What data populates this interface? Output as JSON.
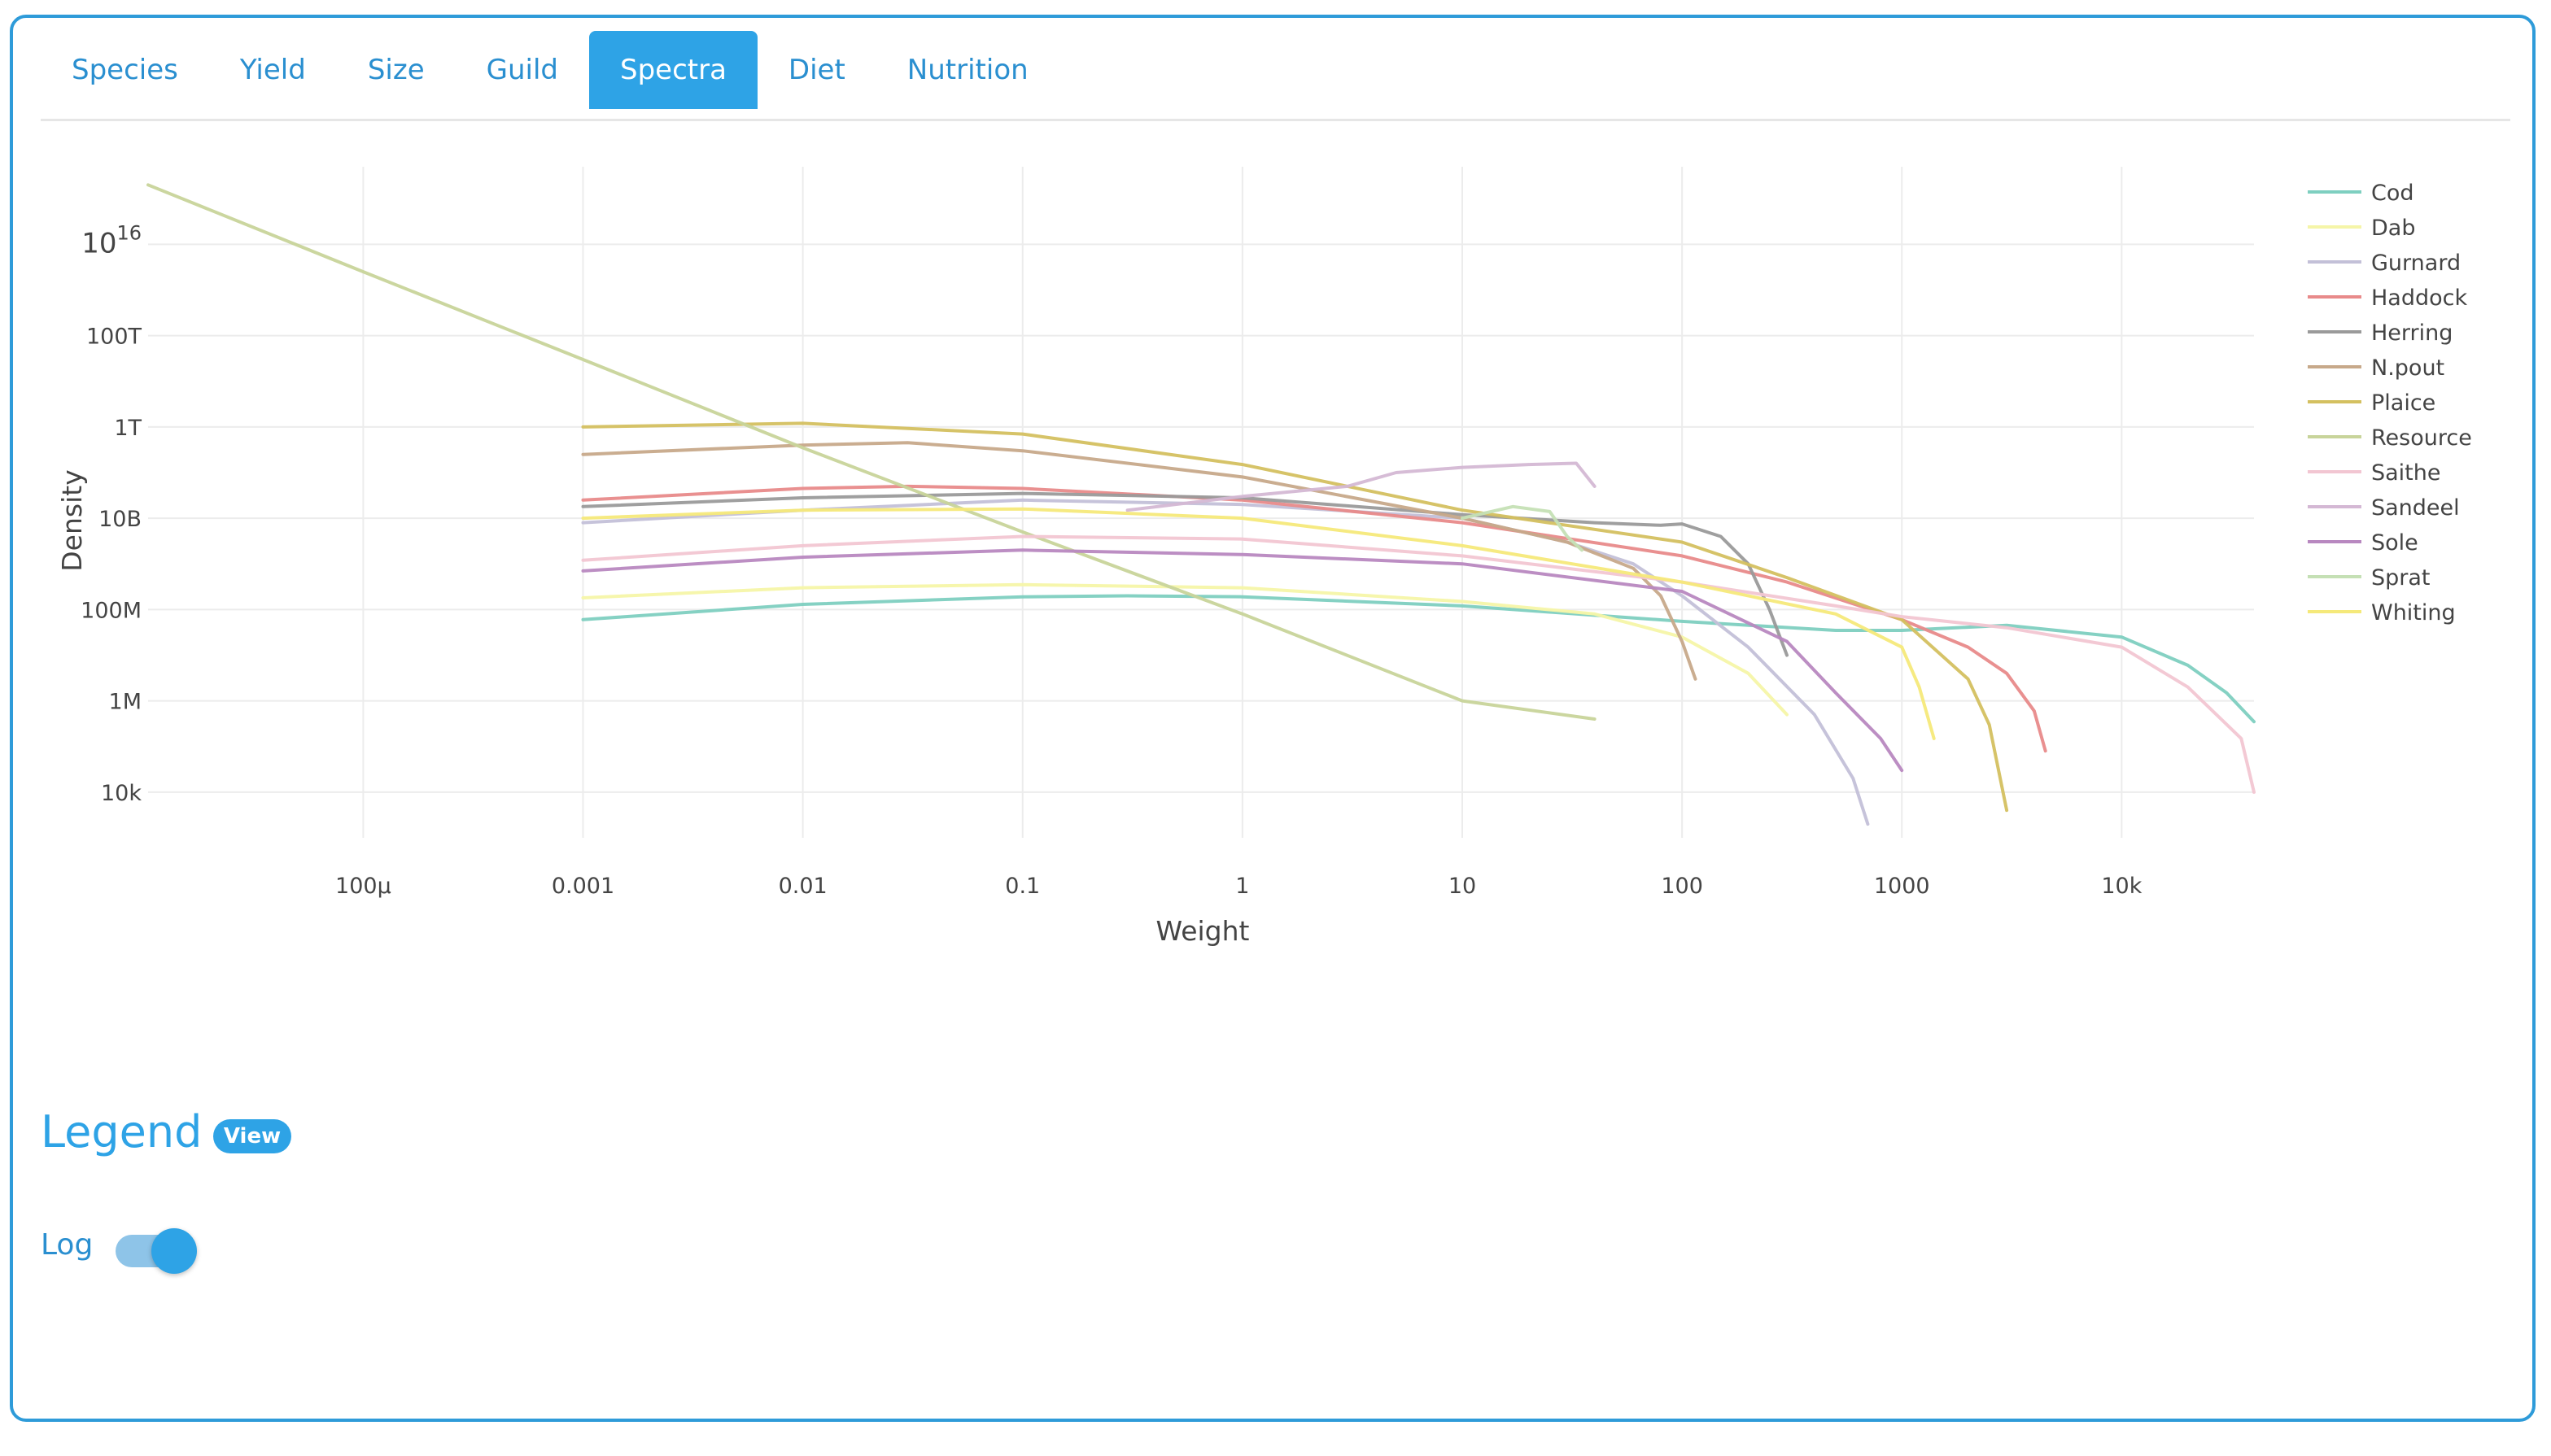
{
  "tabs": [
    {
      "label": "Species",
      "active": false
    },
    {
      "label": "Yield",
      "active": false
    },
    {
      "label": "Size",
      "active": false
    },
    {
      "label": "Guild",
      "active": false
    },
    {
      "label": "Spectra",
      "active": true
    },
    {
      "label": "Diet",
      "active": false
    },
    {
      "label": "Nutrition",
      "active": false
    }
  ],
  "legend_section": {
    "heading": "Legend",
    "view_label": "View"
  },
  "log_toggle": {
    "label": "Log",
    "on": true
  },
  "chart_data": {
    "type": "line",
    "xlabel": "Weight",
    "ylabel": "Density",
    "xscale": "log",
    "yscale": "log",
    "xlim": [
      1.05e-05,
      40000
    ],
    "ylim": [
      1000,
      5e+17
    ],
    "x_ticks": [
      {
        "value": 0.0001,
        "label": "100μ"
      },
      {
        "value": 0.001,
        "label": "0.001"
      },
      {
        "value": 0.01,
        "label": "0.01"
      },
      {
        "value": 0.1,
        "label": "0.1"
      },
      {
        "value": 1,
        "label": "1"
      },
      {
        "value": 10,
        "label": "10"
      },
      {
        "value": 100,
        "label": "100"
      },
      {
        "value": 1000,
        "label": "1000"
      },
      {
        "value": 10000,
        "label": "10k"
      }
    ],
    "y_ticks": [
      {
        "value": 10000,
        "label": "10k"
      },
      {
        "value": 1000000,
        "label": "1M"
      },
      {
        "value": 100000000,
        "label": "100M"
      },
      {
        "value": 10000000000,
        "label": "10B"
      },
      {
        "value": 1000000000000,
        "label": "1T"
      },
      {
        "value": 100000000000000,
        "label": "100T"
      },
      {
        "value": 10000000000000000,
        "label": "10",
        "sup": "16"
      }
    ],
    "grid": true,
    "legend_position": "right",
    "series": [
      {
        "name": "Cod",
        "color": "#7ecfc0",
        "points": [
          [
            0.001,
            60000000.0
          ],
          [
            0.01,
            130000000.0
          ],
          [
            0.1,
            190000000.0
          ],
          [
            0.3,
            200000000.0
          ],
          [
            1,
            190000000.0
          ],
          [
            10,
            120000000.0
          ],
          [
            100,
            55000000.0
          ],
          [
            500,
            35000000.0
          ],
          [
            1000,
            35000000.0
          ],
          [
            3000,
            45000000.0
          ],
          [
            10000,
            25000000.0
          ],
          [
            20000,
            6000000.0
          ],
          [
            30000,
            1500000.0
          ],
          [
            40000,
            350000.0
          ]
        ]
      },
      {
        "name": "Dab",
        "color": "#f5f5a8",
        "points": [
          [
            0.001,
            180000000.0
          ],
          [
            0.01,
            300000000.0
          ],
          [
            0.1,
            350000000.0
          ],
          [
            1,
            300000000.0
          ],
          [
            10,
            150000000.0
          ],
          [
            40,
            80000000.0
          ],
          [
            100,
            25000000.0
          ],
          [
            200,
            4000000.0
          ],
          [
            300,
            500000.0
          ]
        ]
      },
      {
        "name": "Gurnard",
        "color": "#c3c0d8",
        "points": [
          [
            0.001,
            8000000000.0
          ],
          [
            0.01,
            15000000000.0
          ],
          [
            0.1,
            25000000000.0
          ],
          [
            1,
            20000000000.0
          ],
          [
            10,
            10000000000.0
          ],
          [
            30,
            3000000000.0
          ],
          [
            60,
            1000000000.0
          ],
          [
            100,
            200000000.0
          ],
          [
            200,
            15000000.0
          ],
          [
            400,
            500000.0
          ],
          [
            600,
            20000.0
          ],
          [
            700,
            2000.0
          ]
        ]
      },
      {
        "name": "Haddock",
        "color": "#e88a8a",
        "points": [
          [
            0.001,
            25000000000.0
          ],
          [
            0.01,
            45000000000.0
          ],
          [
            0.03,
            50000000000.0
          ],
          [
            0.1,
            45000000000.0
          ],
          [
            1,
            25000000000.0
          ],
          [
            10,
            8000000000.0
          ],
          [
            100,
            1500000000.0
          ],
          [
            300,
            400000000.0
          ],
          [
            1000,
            60000000.0
          ],
          [
            2000,
            15000000.0
          ],
          [
            3000,
            4000000.0
          ],
          [
            4000,
            600000.0
          ],
          [
            4500,
            80000.0
          ]
        ]
      },
      {
        "name": "Herring",
        "color": "#9a9a9a",
        "points": [
          [
            0.001,
            18000000000.0
          ],
          [
            0.01,
            28000000000.0
          ],
          [
            0.1,
            35000000000.0
          ],
          [
            1,
            28000000000.0
          ],
          [
            10,
            12000000000.0
          ],
          [
            40,
            8000000000.0
          ],
          [
            80,
            7000000000.0
          ],
          [
            100,
            7500000000.0
          ],
          [
            150,
            4000000000.0
          ],
          [
            200,
            1000000000.0
          ],
          [
            250,
            100000000.0
          ],
          [
            300,
            10000000.0
          ]
        ]
      },
      {
        "name": "N.pout",
        "color": "#c7a98a",
        "points": [
          [
            0.001,
            250000000000.0
          ],
          [
            0.01,
            400000000000.0
          ],
          [
            0.03,
            450000000000.0
          ],
          [
            0.1,
            300000000000.0
          ],
          [
            1,
            80000000000.0
          ],
          [
            10,
            10000000000.0
          ],
          [
            30,
            3000000000.0
          ],
          [
            60,
            800000000.0
          ],
          [
            80,
            200000000.0
          ],
          [
            100,
            20000000.0
          ],
          [
            115,
            3000000.0
          ]
        ]
      },
      {
        "name": "Plaice",
        "color": "#d4c060",
        "points": [
          [
            0.001,
            1000000000000.0
          ],
          [
            0.01,
            1200000000000.0
          ],
          [
            0.1,
            700000000000.0
          ],
          [
            1,
            150000000000.0
          ],
          [
            10,
            15000000000.0
          ],
          [
            100,
            3000000000.0
          ],
          [
            300,
            500000000.0
          ],
          [
            1000,
            60000000.0
          ],
          [
            2000,
            3000000.0
          ],
          [
            2500,
            300000.0
          ],
          [
            3000,
            4000.0
          ]
        ]
      },
      {
        "name": "Resource",
        "color": "#c8d49a",
        "points": [
          [
            1.05e-05,
            2e+17
          ],
          [
            0.0001,
            2500000000000000.0
          ],
          [
            0.001,
            30000000000000.0
          ],
          [
            0.01,
            350000000000.0
          ],
          [
            0.1,
            5000000000.0
          ],
          [
            1,
            80000000.0
          ],
          [
            10,
            1000000.0
          ],
          [
            40,
            400000.0
          ]
        ]
      },
      {
        "name": "Saithe",
        "color": "#f2c6d2",
        "points": [
          [
            0.001,
            1200000000.0
          ],
          [
            0.01,
            2500000000.0
          ],
          [
            0.1,
            4000000000.0
          ],
          [
            1,
            3500000000.0
          ],
          [
            10,
            1500000000.0
          ],
          [
            100,
            400000000.0
          ],
          [
            500,
            120000000.0
          ],
          [
            1000,
            70000000.0
          ],
          [
            3000,
            40000000.0
          ],
          [
            10000,
            15000000.0
          ],
          [
            20000,
            2000000.0
          ],
          [
            35000,
            150000.0
          ],
          [
            40000,
            10000.0
          ]
        ]
      },
      {
        "name": "Sandeel",
        "color": "#d4b8d4",
        "points": [
          [
            0.3,
            15000000000.0
          ],
          [
            1,
            30000000000.0
          ],
          [
            3,
            50000000000.0
          ],
          [
            5,
            100000000000.0
          ],
          [
            10,
            130000000000.0
          ],
          [
            20,
            150000000000.0
          ],
          [
            33,
            160000000000.0
          ],
          [
            40,
            50000000000.0
          ]
        ]
      },
      {
        "name": "Sole",
        "color": "#b888c0",
        "points": [
          [
            0.001,
            700000000.0
          ],
          [
            0.01,
            1400000000.0
          ],
          [
            0.1,
            2000000000.0
          ],
          [
            1,
            1600000000.0
          ],
          [
            10,
            1000000000.0
          ],
          [
            100,
            250000000.0
          ],
          [
            300,
            20000000.0
          ],
          [
            500,
            1500000.0
          ],
          [
            800,
            150000.0
          ],
          [
            1000,
            30000.0
          ]
        ]
      },
      {
        "name": "Sprat",
        "color": "#c5e0b5",
        "points": [
          [
            10,
            10000000000.0
          ],
          [
            17,
            18000000000.0
          ],
          [
            25,
            14000000000.0
          ],
          [
            30,
            4000000000.0
          ],
          [
            35,
            2000000000.0
          ]
        ]
      },
      {
        "name": "Whiting",
        "color": "#f5e97a",
        "points": [
          [
            0.001,
            10000000000.0
          ],
          [
            0.01,
            15000000000.0
          ],
          [
            0.1,
            16000000000.0
          ],
          [
            1,
            10000000000.0
          ],
          [
            10,
            2500000000.0
          ],
          [
            100,
            400000000.0
          ],
          [
            500,
            80000000.0
          ],
          [
            1000,
            15000000.0
          ],
          [
            1200,
            2000000.0
          ],
          [
            1400,
            150000.0
          ]
        ]
      }
    ]
  }
}
